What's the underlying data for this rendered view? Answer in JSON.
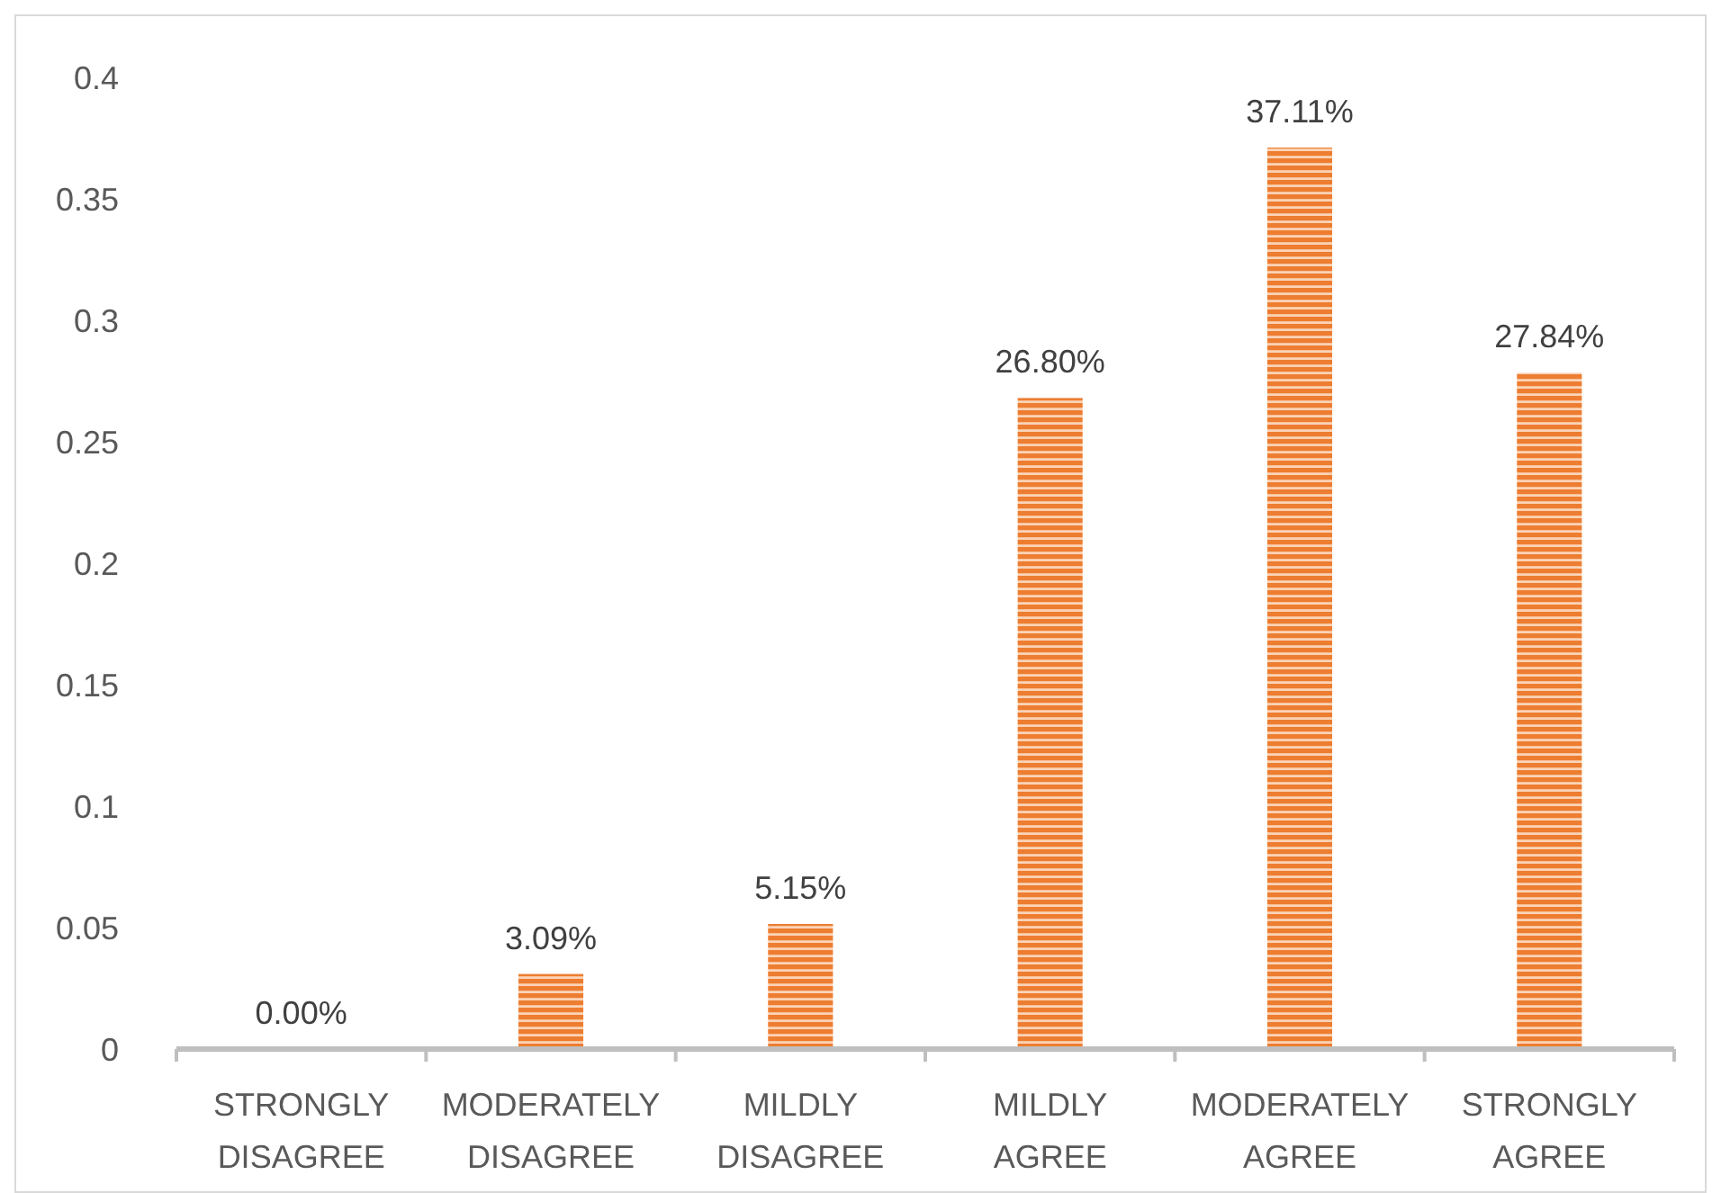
{
  "chart_data": {
    "type": "bar",
    "categories": [
      "STRONGLY DISAGREE",
      "MODERATELY DISAGREE",
      "MILDLY DISAGREE",
      "MILDLY AGREE",
      "MODERATELY AGREE",
      "STRONGLY AGREE"
    ],
    "values": [
      0,
      0.0309,
      0.0515,
      0.268,
      0.3711,
      0.2784
    ],
    "value_labels": [
      "0.00%",
      "3.09%",
      "5.15%",
      "26.80%",
      "37.11%",
      "27.84%"
    ],
    "color": "#ed7d31",
    "ylim": [
      0,
      0.4
    ],
    "yticks": [
      0,
      0.05,
      0.1,
      0.15,
      0.2,
      0.25,
      0.3,
      0.35,
      0.4
    ],
    "grid": false
  }
}
